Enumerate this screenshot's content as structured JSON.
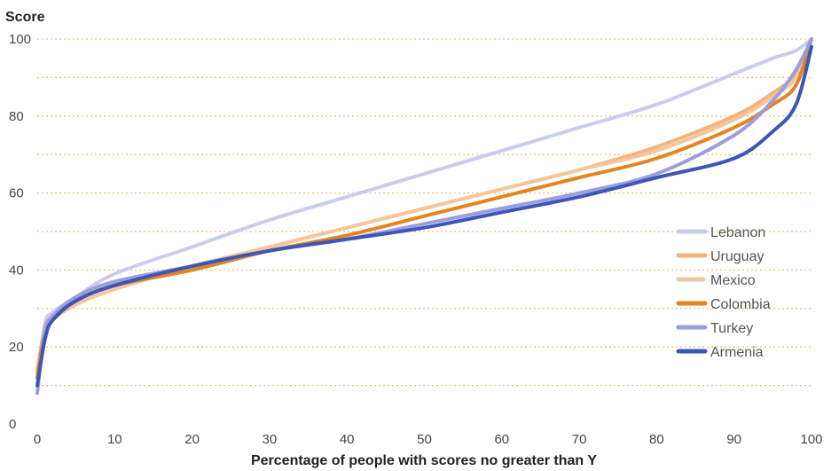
{
  "chart_data": {
    "type": "line",
    "title": "",
    "ylabel": "Score",
    "xlabel": "Percentage of people with scores no greater than Y",
    "xlim": [
      0,
      100
    ],
    "ylim": [
      0,
      100
    ],
    "x_ticks": [
      0,
      10,
      20,
      30,
      40,
      50,
      60,
      70,
      80,
      90,
      100
    ],
    "y_ticks": [
      0,
      20,
      40,
      60,
      80,
      100
    ],
    "y_tick_labels": [
      "0",
      "20",
      "40",
      "60",
      "80",
      "100"
    ],
    "x_tick_labels": [
      "0",
      "10",
      "20",
      "30",
      "40",
      "50",
      "60",
      "70",
      "80",
      "90",
      "100"
    ],
    "grid": "horizontal dotted",
    "grid_color": "#f2c27a",
    "legend_position": "right",
    "series": [
      {
        "name": "Lebanon",
        "color": "#c9ccec",
        "style": "solid",
        "x": [
          0,
          1,
          2,
          5,
          10,
          20,
          30,
          40,
          50,
          60,
          70,
          80,
          90,
          95,
          98,
          100
        ],
        "y": [
          12,
          26,
          29,
          33,
          39,
          46,
          53,
          59,
          65,
          71,
          77,
          83,
          91,
          95,
          97,
          100
        ]
      },
      {
        "name": "Uruguay",
        "color": "#f5b27a",
        "style": "solid",
        "x": [
          0,
          1,
          2,
          5,
          10,
          20,
          30,
          40,
          50,
          60,
          70,
          80,
          90,
          95,
          98,
          100
        ],
        "y": [
          14,
          25,
          28,
          32,
          36,
          41,
          46,
          51,
          56,
          61,
          66,
          72,
          80,
          86,
          91,
          100
        ]
      },
      {
        "name": "Mexico",
        "color": "#f4c69c",
        "style": "dotted",
        "x": [
          0,
          1,
          2,
          5,
          10,
          20,
          30,
          40,
          50,
          60,
          70,
          80,
          90,
          95,
          98,
          100
        ],
        "y": [
          13,
          24,
          27,
          31,
          35,
          41,
          46,
          51,
          56,
          61,
          66,
          71,
          79,
          85,
          90,
          100
        ]
      },
      {
        "name": "Colombia",
        "color": "#e0851f",
        "style": "solid",
        "x": [
          0,
          1,
          2,
          5,
          10,
          20,
          30,
          40,
          50,
          60,
          70,
          80,
          90,
          95,
          98,
          100
        ],
        "y": [
          12,
          24,
          27,
          32,
          36,
          40,
          45,
          49,
          54,
          59,
          64,
          69,
          77,
          83,
          88,
          100
        ]
      },
      {
        "name": "Turkey",
        "color": "#9a9ee0",
        "style": "solid",
        "x": [
          0,
          1,
          2,
          5,
          10,
          20,
          30,
          40,
          50,
          60,
          70,
          80,
          90,
          95,
          98,
          100
        ],
        "y": [
          8,
          24,
          28,
          33,
          37,
          41,
          45,
          48,
          52,
          56,
          60,
          65,
          75,
          84,
          92,
          100
        ]
      },
      {
        "name": "Armenia",
        "color": "#3b55b8",
        "style": "solid",
        "x": [
          0,
          1,
          2,
          5,
          10,
          20,
          30,
          40,
          50,
          60,
          70,
          80,
          90,
          95,
          98,
          100
        ],
        "y": [
          10,
          22,
          27,
          32,
          36,
          41,
          45,
          48,
          51,
          55,
          59,
          64,
          69,
          76,
          83,
          98
        ]
      }
    ]
  }
}
